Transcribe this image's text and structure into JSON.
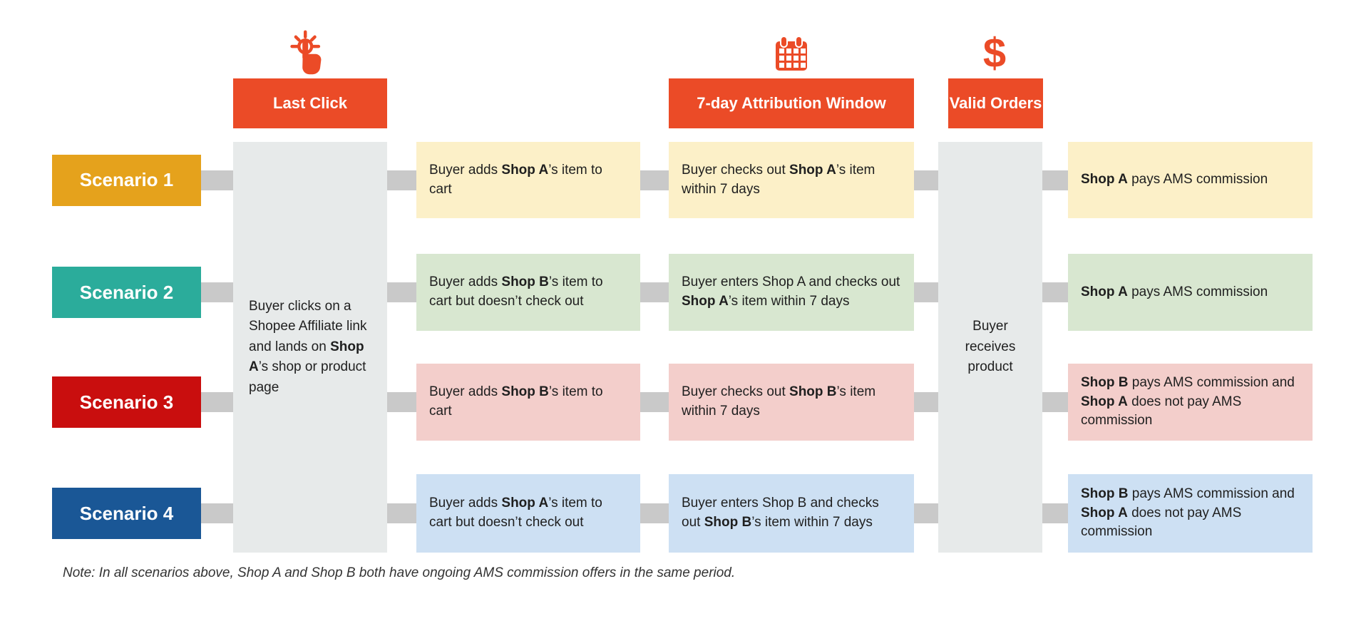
{
  "colors": {
    "accent": "#EB4B27",
    "connector": "#C9C9C9",
    "gray_column": "#E7EAEA",
    "text": "#1F1F1F"
  },
  "headers": [
    {
      "label": "Last Click",
      "icon": "tap-click-icon"
    },
    {
      "label": "7-day Attribution Window",
      "icon": "calendar-icon"
    },
    {
      "label": "Valid Orders",
      "icon": "dollar-icon"
    }
  ],
  "shared_steps": {
    "entry": "Buyer clicks on a Shopee Affiliate link and lands on **Shop A**’s shop or product page",
    "delivery": "Buyer receives product"
  },
  "scenarios": [
    {
      "label": "Scenario 1",
      "badge_color": "#E5A21C",
      "cell_color": "#FCF0C8",
      "add_to_cart": "Buyer adds **Shop A**’s item to cart",
      "attribution": "Buyer checks out **Shop A**’s item within 7 days",
      "outcome": "**Shop A** pays AMS commission"
    },
    {
      "label": "Scenario 2",
      "badge_color": "#2BAC9B",
      "cell_color": "#D8E7D0",
      "add_to_cart": "Buyer adds **Shop B**’s item to cart but doesn’t check out",
      "attribution": "Buyer enters Shop A and checks out **Shop A**’s item within 7 days",
      "outcome": "**Shop A** pays AMS commission"
    },
    {
      "label": "Scenario 3",
      "badge_color": "#C90E0E",
      "cell_color": "#F3CECB",
      "add_to_cart": "Buyer adds **Shop B**’s item to cart",
      "attribution": "Buyer checks out **Shop B**’s item within 7 days",
      "outcome": "**Shop B** pays AMS commission and **Shop A** does not pay AMS commission"
    },
    {
      "label": "Scenario 4",
      "badge_color": "#1A5796",
      "cell_color": "#CDE0F3",
      "add_to_cart": "Buyer adds **Shop A**’s item to cart but doesn’t check out",
      "attribution": "Buyer enters Shop B and checks out **Shop B**’s item within 7 days",
      "outcome": "**Shop B** pays AMS commission and **Shop A** does not pay AMS commission"
    }
  ],
  "note": "Note: In all scenarios above, Shop A and Shop B both have ongoing AMS commission offers in the same period."
}
